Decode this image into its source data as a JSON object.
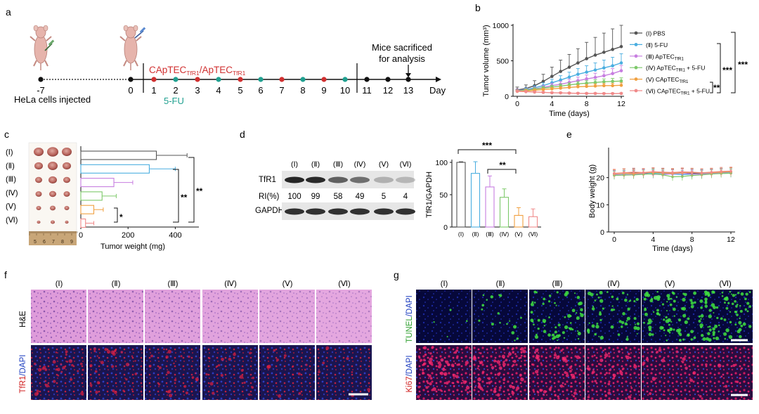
{
  "panels": {
    "a": "a",
    "b": "b",
    "c": "c",
    "d": "d",
    "e": "e",
    "f": "f",
    "g": "g"
  },
  "roman": [
    "(Ⅰ)",
    "(Ⅱ)",
    "(Ⅲ)",
    "(Ⅳ)",
    "(Ⅴ)",
    "(Ⅵ)"
  ],
  "colors": {
    "I": "#555555",
    "II": "#4aaee0",
    "III": "#c77ee0",
    "IV": "#7dc96a",
    "V": "#f0a040",
    "VI": "#f08a8a",
    "schedule_red": "#d03030",
    "schedule_teal": "#20a090"
  },
  "timeline": {
    "days": [
      "-7",
      "0",
      "1",
      "2",
      "3",
      "4",
      "5",
      "6",
      "7",
      "8",
      "9",
      "10",
      "11",
      "12",
      "13"
    ],
    "start_label": "HeLa cells injected",
    "treat_main": "CApTEC",
    "treat_sub1": "TfR1",
    "treat_slash": "/ApTEC",
    "treat_sub2": "TfR1",
    "fu_label": "5-FU",
    "sacrifice_line1": "Mice sacrificed",
    "sacrifice_line2": "for analysis",
    "day_label": "Day"
  },
  "legend_b": [
    {
      "roman": "(Ⅰ)",
      "name": "PBS",
      "sub": "",
      "suffix": ""
    },
    {
      "roman": "(Ⅱ)",
      "name": "5-FU",
      "sub": "",
      "suffix": ""
    },
    {
      "roman": "(Ⅲ)",
      "name": "ApTEC",
      "sub": "TfR1",
      "suffix": ""
    },
    {
      "roman": "(Ⅳ)",
      "name": "ApTEC",
      "sub": "TfR1",
      "suffix": " + 5-FU"
    },
    {
      "roman": "(Ⅴ)",
      "name": "CApTEC",
      "sub": "TfR1",
      "suffix": ""
    },
    {
      "roman": "(Ⅵ)",
      "name": "CApTEC",
      "sub": "TfR1",
      "suffix": " + 5-FU"
    }
  ],
  "western": {
    "bands": [
      "TfR1",
      "GAPDH"
    ],
    "ri_label": "RI(%)",
    "ri_values": [
      "100",
      "99",
      "58",
      "49",
      "5",
      "4"
    ]
  },
  "sig": {
    "s1": "*",
    "s2": "**",
    "s3": "***"
  },
  "staining": {
    "f_rows": [
      "H&E",
      "TfR1",
      "/DAPI"
    ],
    "g_rows": [
      "TUNEL",
      "/DAPI",
      "Ki67",
      "/DAPI"
    ]
  },
  "ruler_numbers": [
    "5",
    "6",
    "7",
    "8",
    "9"
  ],
  "chart_data": [
    {
      "panel": "b",
      "type": "line",
      "xlabel": "Time (days)",
      "ylabel": "Tumor volume (mm³)",
      "xlim": [
        0,
        12
      ],
      "ylim": [
        0,
        1000
      ],
      "xticks": [
        0,
        4,
        8,
        12
      ],
      "yticks": [
        0,
        500,
        1000
      ],
      "x": [
        0,
        1,
        2,
        3,
        4,
        5,
        6,
        7,
        8,
        9,
        10,
        11,
        12
      ],
      "series": [
        {
          "name": "(Ⅰ) PBS",
          "color": "#555555",
          "values": [
            90,
            110,
            150,
            210,
            280,
            350,
            410,
            470,
            530,
            580,
            620,
            660,
            700
          ],
          "err": [
            40,
            50,
            70,
            100,
            130,
            160,
            180,
            200,
            230,
            250,
            270,
            290,
            300
          ]
        },
        {
          "name": "(Ⅱ) 5-FU",
          "color": "#4aaee0",
          "values": [
            80,
            95,
            120,
            150,
            190,
            230,
            270,
            310,
            340,
            370,
            400,
            430,
            470
          ],
          "err": [
            20,
            25,
            30,
            40,
            50,
            60,
            70,
            80,
            90,
            100,
            110,
            120,
            130
          ]
        },
        {
          "name": "(Ⅲ) ApTEC TfR1",
          "color": "#c77ee0",
          "values": [
            80,
            90,
            105,
            125,
            150,
            170,
            195,
            220,
            245,
            265,
            290,
            320,
            360
          ],
          "err": [
            20,
            20,
            25,
            30,
            35,
            40,
            45,
            50,
            55,
            60,
            65,
            70,
            75
          ]
        },
        {
          "name": "(Ⅳ) ApTEC TfR1 + 5-FU",
          "color": "#7dc96a",
          "values": [
            75,
            85,
            100,
            115,
            130,
            145,
            160,
            175,
            185,
            195,
            205,
            210,
            215
          ],
          "err": [
            15,
            18,
            20,
            22,
            25,
            28,
            30,
            32,
            35,
            37,
            40,
            42,
            45
          ]
        },
        {
          "name": "(Ⅴ) CApTEC TfR1",
          "color": "#f0a040",
          "values": [
            70,
            75,
            85,
            95,
            105,
            115,
            125,
            135,
            140,
            145,
            150,
            150,
            155
          ],
          "err": [
            15,
            15,
            15,
            18,
            20,
            22,
            25,
            25,
            28,
            30,
            30,
            32,
            35
          ]
        },
        {
          "name": "(Ⅵ) CApTEC TfR1 + 5-FU",
          "color": "#f08a8a",
          "values": [
            70,
            65,
            60,
            55,
            50,
            48,
            45,
            42,
            40,
            40,
            38,
            38,
            40
          ],
          "err": [
            15,
            15,
            12,
            12,
            10,
            10,
            10,
            10,
            10,
            10,
            10,
            10,
            10
          ]
        }
      ],
      "annotations": [
        "**",
        "***",
        "***"
      ]
    },
    {
      "panel": "c",
      "type": "bar",
      "orientation": "horizontal",
      "xlabel": "Tumor weight (mg)",
      "xlim": [
        0,
        500
      ],
      "xticks": [
        0,
        200,
        400
      ],
      "categories": [
        "(Ⅰ)",
        "(Ⅱ)",
        "(Ⅲ)",
        "(Ⅳ)",
        "(Ⅴ)",
        "(Ⅵ)"
      ],
      "values": [
        320,
        290,
        140,
        90,
        55,
        20
      ],
      "err": [
        130,
        110,
        80,
        60,
        40,
        35
      ],
      "annotations": [
        "*",
        "**",
        "**"
      ]
    },
    {
      "panel": "d",
      "type": "bar",
      "ylabel": "TfR1/GAPDH",
      "ylim": [
        0,
        100
      ],
      "yticks": [
        0,
        50,
        100
      ],
      "categories": [
        "(Ⅰ)",
        "(Ⅱ)",
        "(Ⅲ)",
        "(Ⅳ)",
        "(Ⅴ)",
        "(Ⅵ)"
      ],
      "values": [
        100,
        83,
        62,
        46,
        18,
        16
      ],
      "err": [
        1,
        18,
        17,
        13,
        12,
        12
      ],
      "annotations": [
        "***",
        "**"
      ]
    },
    {
      "panel": "e",
      "type": "line",
      "xlabel": "Time (days)",
      "ylabel": "Body weight (g)",
      "xlim": [
        0,
        12
      ],
      "ylim": [
        0,
        30
      ],
      "xticks": [
        0,
        4,
        8,
        12
      ],
      "yticks": [
        0,
        10,
        20
      ],
      "x": [
        0,
        1,
        2,
        3,
        4,
        5,
        6,
        7,
        8,
        9,
        10,
        11,
        12
      ],
      "series": [
        {
          "color": "#555555",
          "values": [
            21.5,
            21.7,
            21.8,
            21.6,
            22,
            21.8,
            21.7,
            21.9,
            21.6,
            21.5,
            21.8,
            22,
            22.1
          ]
        },
        {
          "color": "#4aaee0",
          "values": [
            21,
            21.2,
            21.1,
            21.4,
            21.6,
            21.5,
            21.3,
            21.1,
            21.2,
            21.4,
            21.6,
            21.8,
            21.7
          ]
        },
        {
          "color": "#c77ee0",
          "values": [
            21.2,
            21,
            21.3,
            21.5,
            21.2,
            21.1,
            21.4,
            21.6,
            21.3,
            21.2,
            21.5,
            21.7,
            21.6
          ]
        },
        {
          "color": "#7dc96a",
          "values": [
            20.8,
            20.9,
            21,
            21.2,
            21.4,
            21,
            20.3,
            20.4,
            20.8,
            21,
            21.3,
            21.5,
            21.6
          ]
        },
        {
          "color": "#f0a040",
          "values": [
            21.4,
            21.6,
            21.5,
            21.8,
            21.9,
            21.7,
            21.6,
            21.8,
            21.9,
            21.7,
            21.8,
            22,
            22.2
          ]
        },
        {
          "color": "#f08a8a",
          "values": [
            21.6,
            21.8,
            22,
            21.9,
            22.2,
            22,
            21.9,
            22.1,
            22,
            21.8,
            22,
            22.3,
            22.4
          ]
        }
      ]
    }
  ]
}
